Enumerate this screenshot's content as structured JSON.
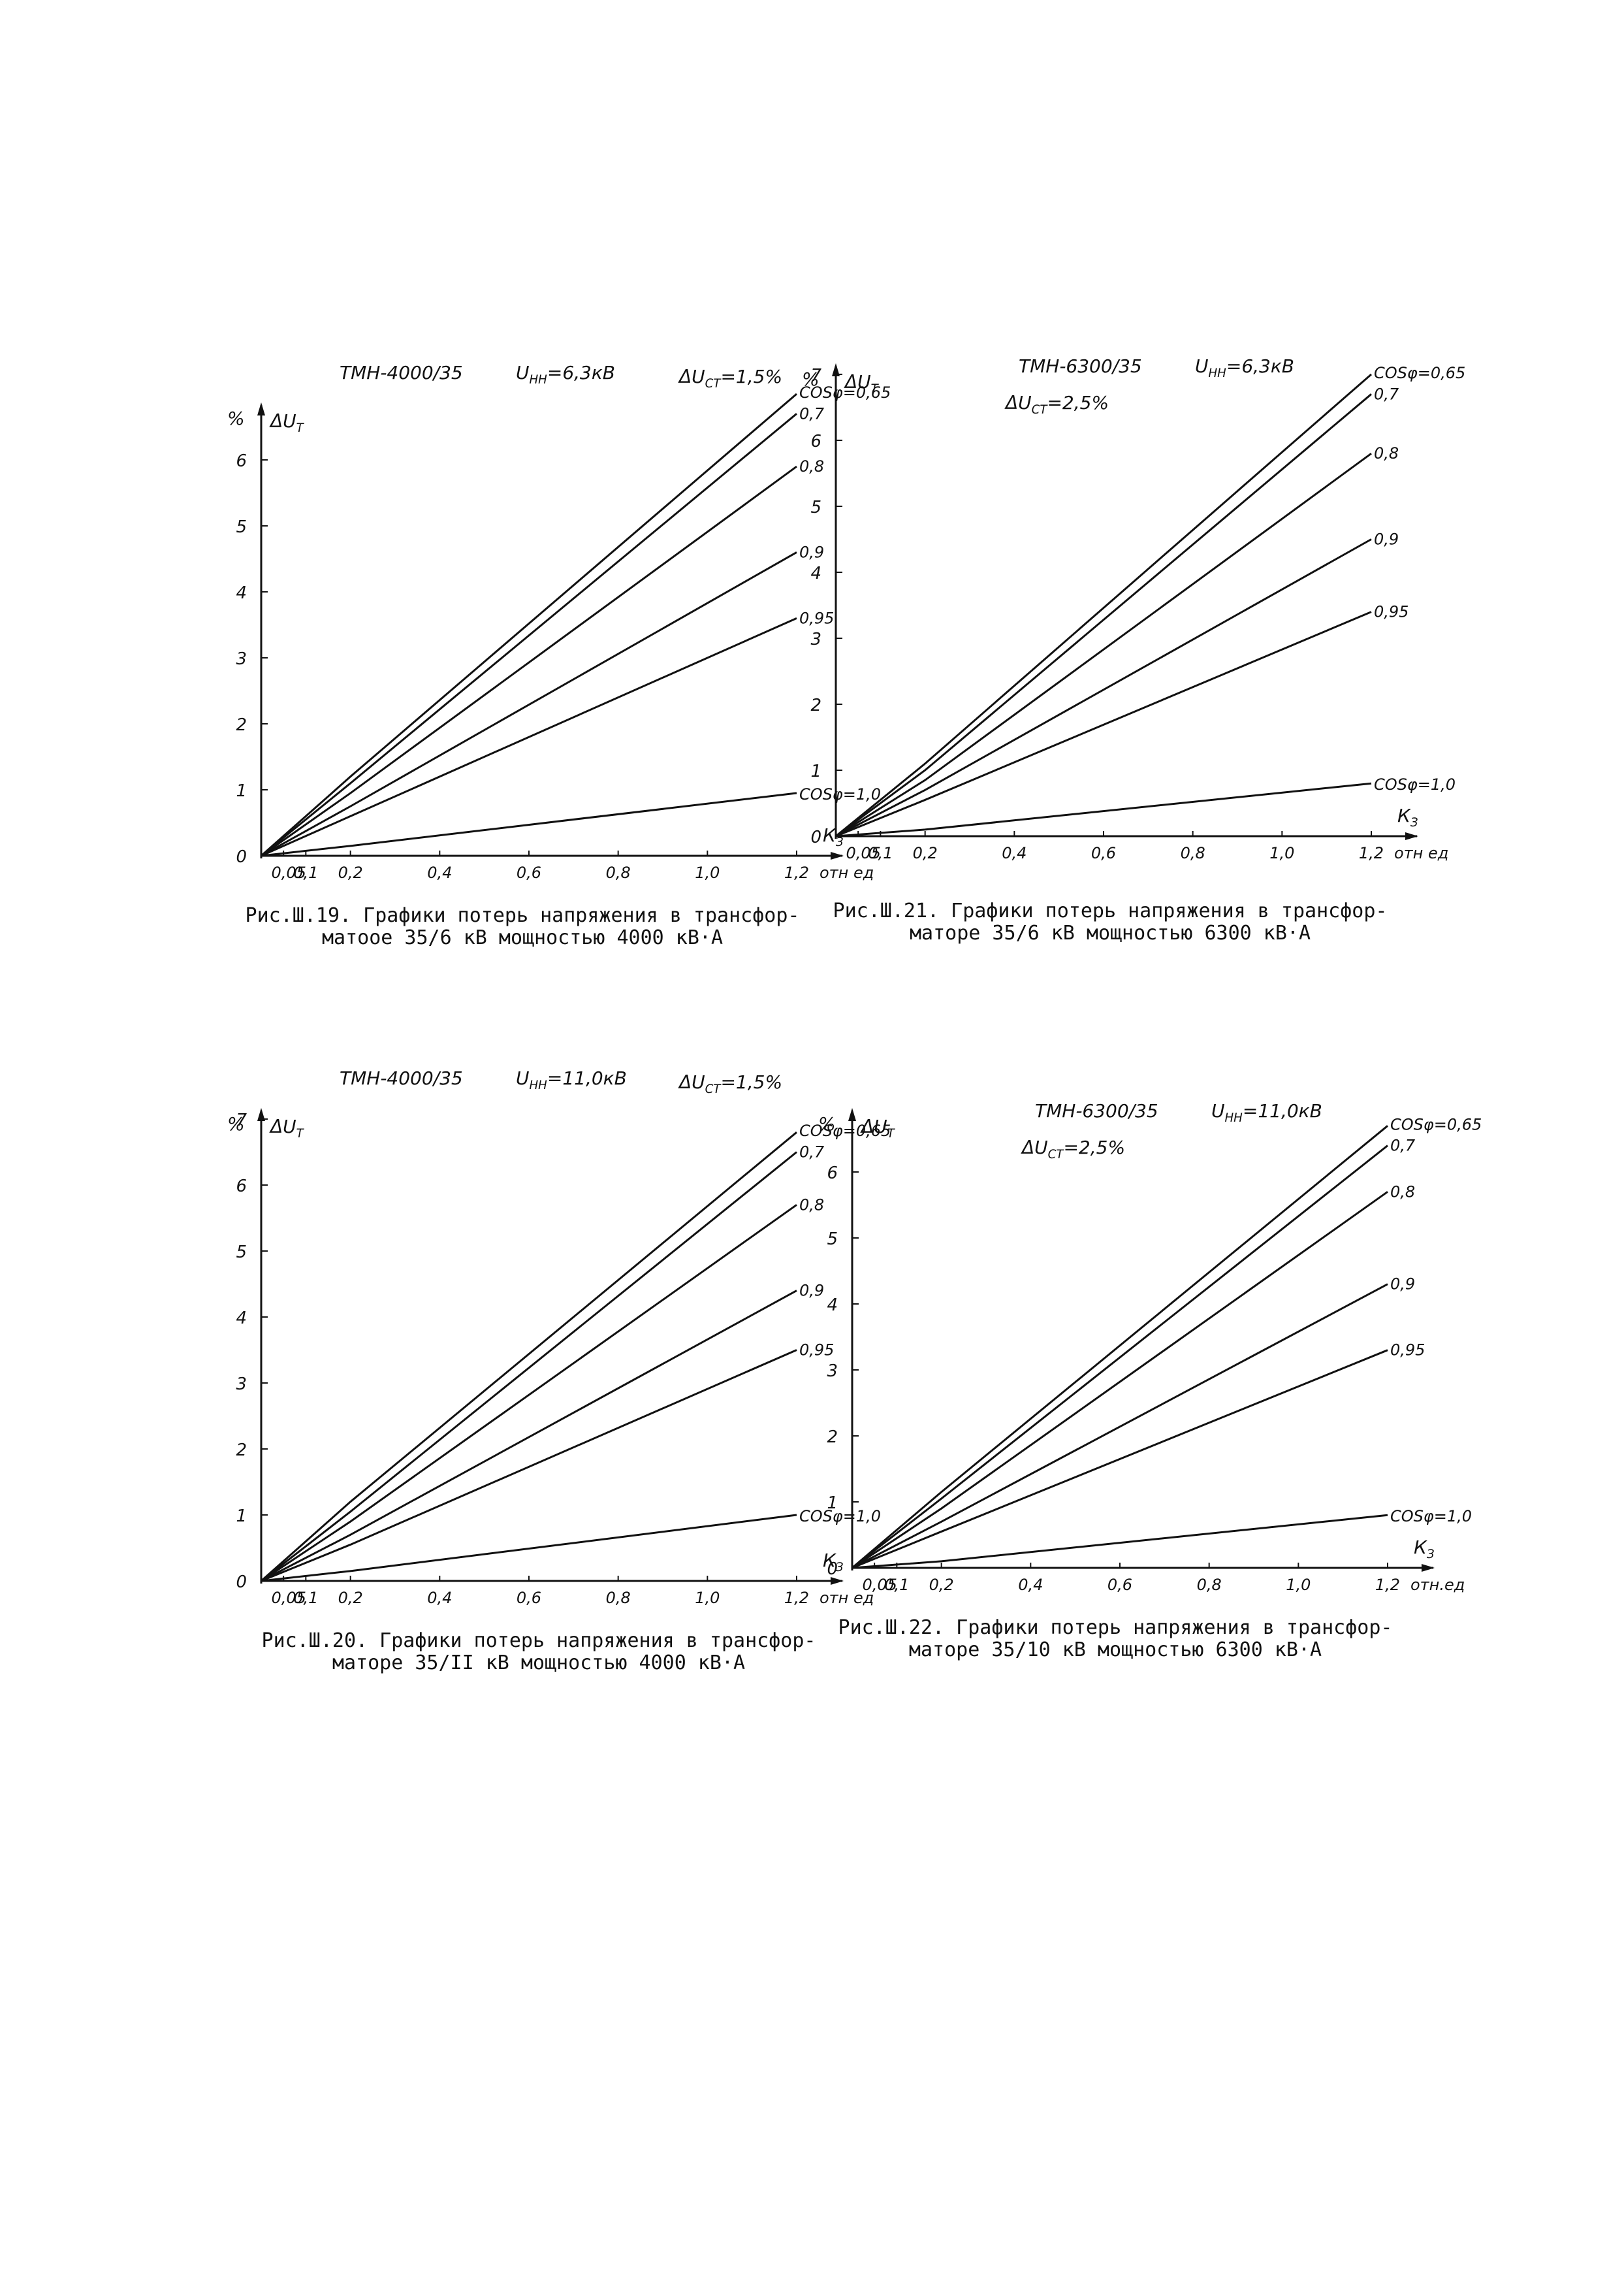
{
  "chart_data": [
    {
      "type": "line",
      "title": "ТМН-4000/35",
      "u_nn": "U_НН=6,3кВ",
      "u_st": "ΔU_СТ=1,5%",
      "y_unit": "%",
      "ylabel": "ΔU_Т",
      "xlabel": "К_З",
      "x_unit": "отн ед",
      "x_ticks": [
        "0,05",
        "0,1",
        "0,2",
        "0,4",
        "0,6",
        "0,8",
        "1,0",
        "1,2"
      ],
      "y_ticks": [
        "0",
        "1",
        "2",
        "3",
        "4",
        "5",
        "6"
      ],
      "xlim": [
        0,
        1.2
      ],
      "ylim": [
        0,
        7
      ],
      "series": [
        {
          "name": "COSφ=0,65",
          "x": [
            0,
            0.2,
            1.2
          ],
          "y": [
            0,
            1.2,
            7.0
          ]
        },
        {
          "name": "0,7",
          "x": [
            0,
            0.2,
            1.2
          ],
          "y": [
            0,
            1.1,
            6.7
          ]
        },
        {
          "name": "0,8",
          "x": [
            0,
            0.2,
            1.2
          ],
          "y": [
            0,
            0.95,
            5.9
          ]
        },
        {
          "name": "0,9",
          "x": [
            0,
            0.2,
            1.2
          ],
          "y": [
            0,
            0.75,
            4.6
          ]
        },
        {
          "name": "0,95",
          "x": [
            0,
            0.2,
            1.2
          ],
          "y": [
            0,
            0.6,
            3.6
          ]
        },
        {
          "name": "COSφ=1,0",
          "x": [
            0,
            0.2,
            1.2
          ],
          "y": [
            0,
            0.15,
            0.95
          ]
        }
      ],
      "caption": [
        "Рис.Ш.19. Графики потерь напряжения в трансфор-",
        "матоое 35/6 кВ мощностью 4000 кВ·А"
      ]
    },
    {
      "type": "line",
      "title": "ТМН-6300/35",
      "u_nn": "U_НН=6,3кВ",
      "u_st": "ΔU_СТ=2,5%",
      "y_unit": "%",
      "ylabel": "ΔU_Т",
      "xlabel": "К_З",
      "x_unit": "отн ед",
      "x_ticks": [
        "0,05",
        "0,1",
        "0,2",
        "0,4",
        "0,6",
        "0,8",
        "1,0",
        "1,2"
      ],
      "y_ticks": [
        "0",
        "1",
        "2",
        "3",
        "4",
        "5",
        "6",
        "7"
      ],
      "xlim": [
        0,
        1.2
      ],
      "ylim": [
        0,
        7
      ],
      "series": [
        {
          "name": "COSφ=0,65",
          "x": [
            0,
            0.2,
            1.2
          ],
          "y": [
            0,
            1.1,
            7.0
          ]
        },
        {
          "name": "0,7",
          "x": [
            0,
            0.2,
            1.2
          ],
          "y": [
            0,
            1.0,
            6.7
          ]
        },
        {
          "name": "0,8",
          "x": [
            0,
            0.2,
            1.2
          ],
          "y": [
            0,
            0.85,
            5.8
          ]
        },
        {
          "name": "0,9",
          "x": [
            0,
            0.2,
            1.2
          ],
          "y": [
            0,
            0.7,
            4.5
          ]
        },
        {
          "name": "0,95",
          "x": [
            0,
            0.2,
            1.2
          ],
          "y": [
            0,
            0.55,
            3.4
          ]
        },
        {
          "name": "COSφ=1,0",
          "x": [
            0,
            0.2,
            1.2
          ],
          "y": [
            0,
            0.1,
            0.8
          ]
        }
      ],
      "caption": [
        "Рис.Ш.21. Графики потерь напряжения в трансфор-",
        "маторе 35/6 кВ мощностью 6300 кВ·А"
      ]
    },
    {
      "type": "line",
      "title": "ТМН-4000/35",
      "u_nn": "U_НН=11,0кВ",
      "u_st": "ΔU_СТ=1,5%",
      "y_unit": "%",
      "ylabel": "ΔU_Т",
      "xlabel": "К_З",
      "x_unit": "отн ед",
      "x_ticks": [
        "0,05",
        "0,1",
        "0,2",
        "0,4",
        "0,6",
        "0,8",
        "1,0",
        "1,2"
      ],
      "y_ticks": [
        "0",
        "1",
        "2",
        "3",
        "4",
        "5",
        "6",
        "7"
      ],
      "xlim": [
        0,
        1.2
      ],
      "ylim": [
        0,
        7
      ],
      "series": [
        {
          "name": "COSφ=0,65",
          "x": [
            0,
            0.2,
            1.2
          ],
          "y": [
            0,
            1.2,
            6.8
          ]
        },
        {
          "name": "0,7",
          "x": [
            0,
            0.2,
            1.2
          ],
          "y": [
            0,
            1.05,
            6.5
          ]
        },
        {
          "name": "0,8",
          "x": [
            0,
            0.2,
            1.2
          ],
          "y": [
            0,
            0.9,
            5.7
          ]
        },
        {
          "name": "0,9",
          "x": [
            0,
            0.2,
            1.2
          ],
          "y": [
            0,
            0.7,
            4.4
          ]
        },
        {
          "name": "0,95",
          "x": [
            0,
            0.2,
            1.2
          ],
          "y": [
            0,
            0.55,
            3.5
          ]
        },
        {
          "name": "COSφ=1,0",
          "x": [
            0,
            0.2,
            1.2
          ],
          "y": [
            0,
            0.15,
            1.0
          ]
        }
      ],
      "caption": [
        "Рис.Ш.20. Графики потерь напряжения в трансфор-",
        "маторе 35/II кВ мощностью 4000 кВ·А"
      ]
    },
    {
      "type": "line",
      "title": "ТМН-6300/35",
      "u_nn": "U_НН=11,0кВ",
      "u_st": "ΔU_СТ=2,5%",
      "y_unit": "%",
      "ylabel": "ΔU_Т",
      "xlabel": "К_З",
      "x_unit": "отн.ед",
      "x_ticks": [
        "0,05",
        "0,1",
        "0,2",
        "0,4",
        "0,6",
        "0,8",
        "1,0",
        "1,2"
      ],
      "y_ticks": [
        "0",
        "1",
        "2",
        "3",
        "4",
        "5",
        "6"
      ],
      "xlim": [
        0,
        1.2
      ],
      "ylim": [
        0,
        7
      ],
      "series": [
        {
          "name": "COSφ=0,65",
          "x": [
            0,
            0.2,
            1.2
          ],
          "y": [
            0,
            1.15,
            6.7
          ]
        },
        {
          "name": "0,7",
          "x": [
            0,
            0.2,
            1.2
          ],
          "y": [
            0,
            1.05,
            6.4
          ]
        },
        {
          "name": "0,8",
          "x": [
            0,
            0.2,
            1.2
          ],
          "y": [
            0,
            0.9,
            5.7
          ]
        },
        {
          "name": "0,9",
          "x": [
            0,
            0.2,
            1.2
          ],
          "y": [
            0,
            0.7,
            4.3
          ]
        },
        {
          "name": "0,95",
          "x": [
            0,
            0.2,
            1.2
          ],
          "y": [
            0,
            0.55,
            3.3
          ]
        },
        {
          "name": "COSφ=1,0",
          "x": [
            0,
            0.2,
            1.2
          ],
          "y": [
            0,
            0.1,
            0.8
          ]
        }
      ],
      "caption": [
        "Рис.Ш.22. Графики потерь напряжения в трансфор-",
        "маторе 35/10 кВ мощностью 6300 кВ·А"
      ]
    }
  ]
}
